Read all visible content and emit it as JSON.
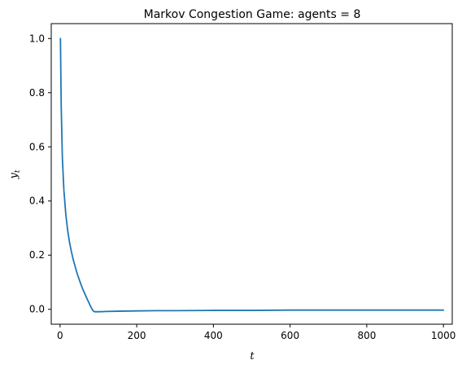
{
  "chart_data": {
    "type": "line",
    "title": "Markov Congestion Game: agents = 8",
    "xlabel": "t",
    "ylabel": "y",
    "ylabel_subscript": "t",
    "xlim": [
      -23,
      1023
    ],
    "ylim": [
      -0.055,
      1.055
    ],
    "xticks": [
      0,
      200,
      400,
      600,
      800,
      1000
    ],
    "yticks": [
      0.0,
      0.2,
      0.4,
      0.6,
      0.8,
      1.0
    ],
    "xtick_labels": [
      "0",
      "200",
      "400",
      "600",
      "800",
      "1000"
    ],
    "ytick_labels": [
      "0.0",
      "0.2",
      "0.4",
      "0.6",
      "0.8",
      "1.0"
    ],
    "grid": false,
    "series": [
      {
        "color": "#1f77b4",
        "x": [
          1,
          3,
          6,
          10,
          15,
          20,
          25,
          30,
          35,
          40,
          45,
          50,
          55,
          60,
          65,
          70,
          75,
          80,
          85,
          88,
          92,
          100,
          120,
          150,
          200,
          250,
          300,
          400,
          500,
          600,
          700,
          800,
          900,
          1000
        ],
        "y": [
          1.0,
          0.75,
          0.56,
          0.44,
          0.35,
          0.29,
          0.245,
          0.21,
          0.18,
          0.155,
          0.13,
          0.11,
          0.09,
          0.072,
          0.056,
          0.04,
          0.025,
          0.01,
          -0.003,
          -0.008,
          -0.009,
          -0.009,
          -0.008,
          -0.007,
          -0.006,
          -0.005,
          -0.005,
          -0.004,
          -0.004,
          -0.003,
          -0.003,
          -0.003,
          -0.003,
          -0.003
        ]
      }
    ]
  }
}
